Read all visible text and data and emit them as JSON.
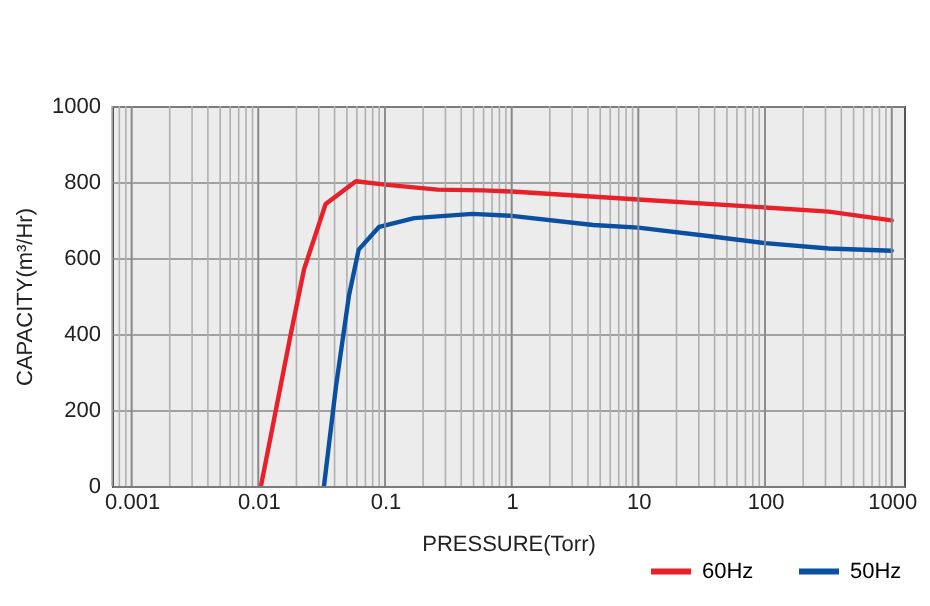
{
  "chart_data": {
    "type": "line",
    "xlabel": "PRESSURE(Torr)",
    "ylabel": "CAPACITY(m³/Hr)",
    "log": "x",
    "xlim": [
      0.0007,
      1250
    ],
    "ylim": [
      0,
      1000
    ],
    "xticks": [
      0.001,
      0.01,
      0.1,
      1,
      10,
      100,
      1000
    ],
    "yticks": [
      0,
      200,
      400,
      600,
      800,
      1000
    ],
    "grid": true,
    "legend": "bottom right",
    "series": [
      {
        "name": "60Hz",
        "color": "#e8202a",
        "x": [
          0.0105,
          0.018,
          0.023,
          0.034,
          0.059,
          0.1,
          0.26,
          0.6,
          1,
          10,
          100,
          318,
          1000
        ],
        "values": [
          0,
          398,
          571,
          742,
          802,
          793,
          780,
          778,
          775,
          754,
          733,
          722,
          699
        ]
      },
      {
        "name": "50Hz",
        "color": "#0a4fa0",
        "x": [
          0.033,
          0.041,
          0.052,
          0.062,
          0.09,
          0.17,
          0.49,
          1,
          4.4,
          10,
          39.7,
          100,
          318,
          1000
        ],
        "values": [
          0,
          261,
          502,
          622,
          682,
          705,
          716,
          711,
          687,
          680,
          656,
          639,
          625,
          619
        ]
      }
    ]
  }
}
